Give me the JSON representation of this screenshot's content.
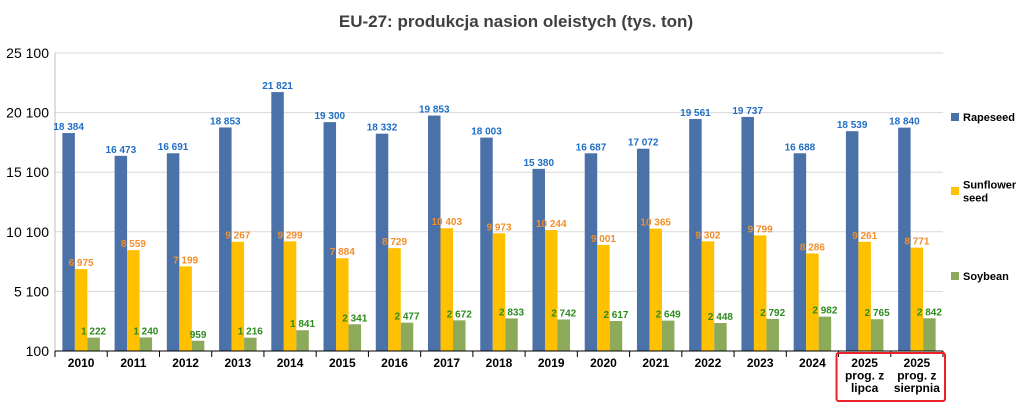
{
  "chart_data": {
    "type": "bar",
    "title": "EU-27: produkcja nasion oleistych (tys. ton)",
    "categories": [
      [
        "2010"
      ],
      [
        "2011"
      ],
      [
        "2012"
      ],
      [
        "2013"
      ],
      [
        "2014"
      ],
      [
        "2015"
      ],
      [
        "2016"
      ],
      [
        "2017"
      ],
      [
        "2018"
      ],
      [
        "2019"
      ],
      [
        "2020"
      ],
      [
        "2021"
      ],
      [
        "2022"
      ],
      [
        "2023"
      ],
      [
        "2024"
      ],
      [
        "2025",
        "prog. z",
        "lipca"
      ],
      [
        "2025",
        "prog. z",
        "sierpnia"
      ]
    ],
    "highlighted_categories": [
      15,
      16
    ],
    "highlight_color": "#e8222a",
    "series": [
      {
        "name": "Rapeseed",
        "color": "#4a72a9",
        "label_color": "#1f6ec4",
        "values": [
          18384,
          16473,
          16691,
          18853,
          21821,
          19300,
          18332,
          19853,
          18003,
          15380,
          16687,
          17072,
          19561,
          19737,
          16688,
          18539,
          18840
        ],
        "labels": [
          "18 384",
          "16 473",
          "16 691",
          "18 853",
          "21 821",
          "19 300",
          "18 332",
          "19 853",
          "18 003",
          "15 380",
          "16 687",
          "17 072",
          "19 561",
          "19 737",
          "16 688",
          "18 539",
          "18 840"
        ]
      },
      {
        "name": "Sunflower seed",
        "legend_lines": [
          "Sunflower",
          "seed"
        ],
        "color": "#ffc000",
        "label_color": "#f28e2b",
        "values": [
          6975,
          8559,
          7199,
          9267,
          9299,
          7884,
          8729,
          10403,
          9973,
          10244,
          9001,
          10365,
          9302,
          9799,
          8286,
          9261,
          8771
        ],
        "labels": [
          "6 975",
          "8 559",
          "7 199",
          "9 267",
          "9 299",
          "7 884",
          "8 729",
          "10 403",
          "9 973",
          "10 244",
          "9 001",
          "10 365",
          "9 302",
          "9 799",
          "8 286",
          "9 261",
          "8 771"
        ]
      },
      {
        "name": "Soybean",
        "color": "#8caa5a",
        "label_color": "#2e8b1e",
        "values": [
          1222,
          1240,
          959,
          1216,
          1841,
          2341,
          2477,
          2672,
          2833,
          2742,
          2617,
          2649,
          2448,
          2792,
          2982,
          2765,
          2842
        ],
        "labels": [
          "1 222",
          "1 240",
          "959",
          "1 216",
          "1 841",
          "2 341",
          "2 477",
          "2 672",
          "2 833",
          "2 742",
          "2 617",
          "2 649",
          "2 448",
          "2 792",
          "2 982",
          "2 765",
          "2 842"
        ]
      }
    ],
    "y_ticks": [
      100,
      5100,
      10100,
      15100,
      20100,
      25100
    ],
    "y_tick_labels": [
      "100",
      "5 100",
      "10 100",
      "15 100",
      "20 100",
      "25 100"
    ],
    "ylim": [
      100,
      25100
    ],
    "grid": true,
    "legend_position": "right"
  }
}
